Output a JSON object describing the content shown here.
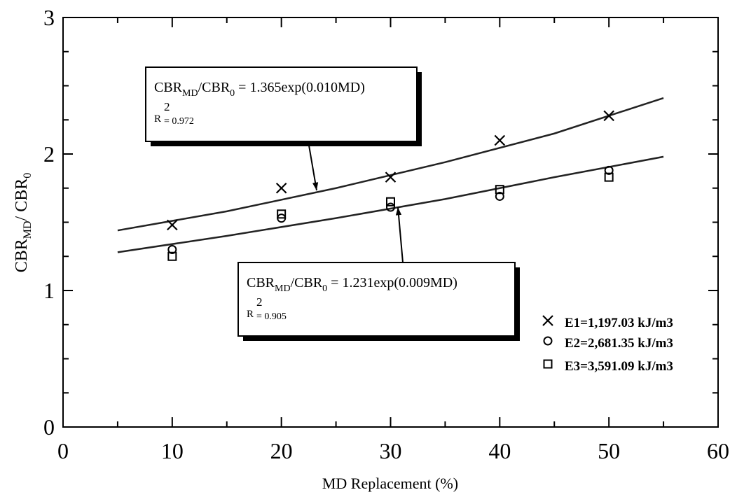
{
  "chart_data": {
    "type": "scatter",
    "xlabel": "MD Replacement (%)",
    "ylabel": [
      "CBR",
      "MD",
      "/ CBR",
      "0"
    ],
    "xlim": [
      0,
      60
    ],
    "xticks": [
      0,
      10,
      20,
      30,
      40,
      50,
      60
    ],
    "xminorticks": [
      5,
      15,
      25,
      35,
      45,
      55
    ],
    "ylim": [
      0,
      3
    ],
    "yticks": [
      0,
      1,
      2,
      3
    ],
    "yminorticks": [
      0.25,
      0.5,
      0.75,
      1.25,
      1.5,
      1.75,
      2.25,
      2.5,
      2.75
    ],
    "legend": "lower right",
    "x": [
      10,
      20,
      30,
      40,
      50
    ],
    "series": [
      {
        "name": "E1=1,197.03 kJ/m3",
        "marker": "x",
        "color": "#000000",
        "values": [
          1.48,
          1.75,
          1.83,
          2.1,
          2.28
        ]
      },
      {
        "name": "E2=2,681.35 kJ/m3",
        "marker": "circle",
        "color": "#000000",
        "values": [
          1.3,
          1.53,
          1.61,
          1.69,
          1.88
        ]
      },
      {
        "name": "E3=3,591.09 kJ/m3",
        "marker": "square",
        "color": "#000000",
        "values": [
          1.25,
          1.56,
          1.65,
          1.74,
          1.83
        ]
      }
    ],
    "fits": [
      {
        "color": "#222222",
        "x": [
          5,
          15,
          25,
          35,
          45,
          55
        ],
        "values": [
          1.44,
          1.58,
          1.75,
          1.94,
          2.15,
          2.41
        ]
      },
      {
        "color": "#222222",
        "x": [
          5,
          15,
          25,
          35,
          45,
          55
        ],
        "values": [
          1.28,
          1.4,
          1.53,
          1.67,
          1.83,
          1.98
        ]
      }
    ],
    "annotations": [
      {
        "equation": [
          "CBR",
          "MD",
          "/CBR",
          "0",
          " = 1.365exp(0.010MD)"
        ],
        "r2": [
          "R",
          "2",
          "= 0.972"
        ]
      },
      {
        "equation": [
          "CBR",
          "MD",
          "/CBR",
          "0",
          " = 1.231exp(0.009MD)"
        ],
        "r2": [
          "R",
          "2",
          "= 0.905"
        ]
      }
    ]
  }
}
